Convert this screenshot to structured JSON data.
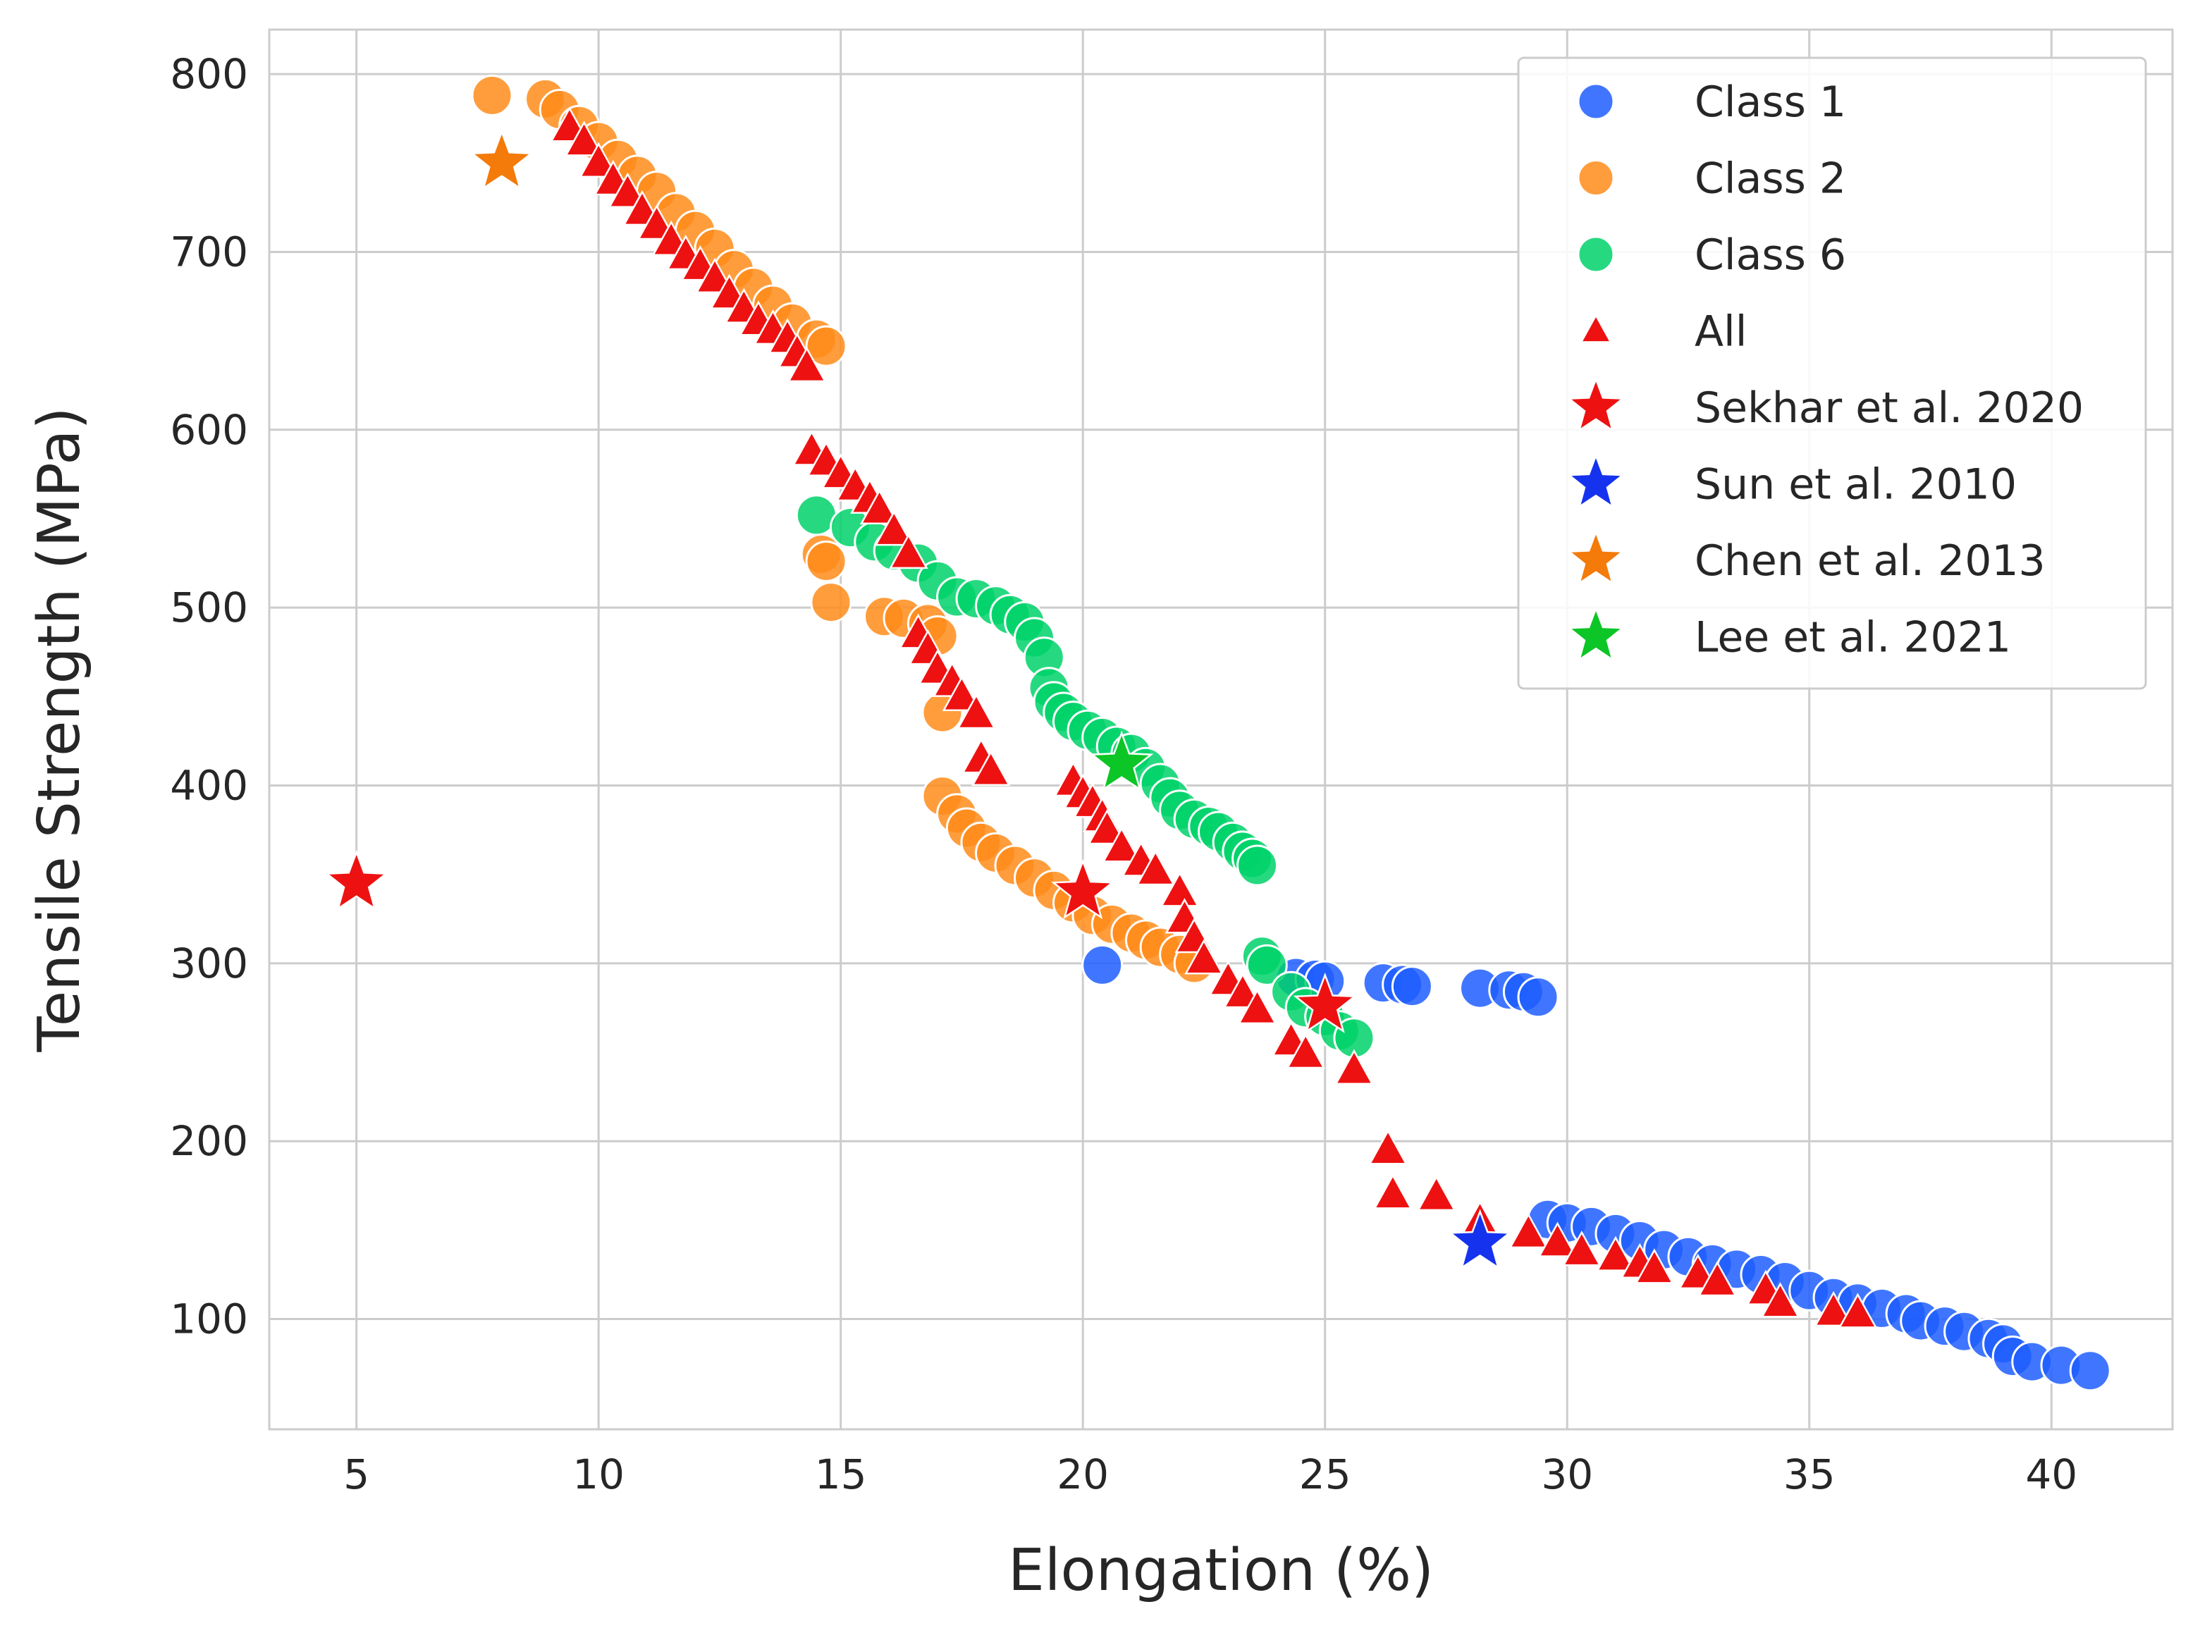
{
  "chart_data": {
    "type": "scatter",
    "title": "",
    "xlabel": "Elongation (%)",
    "ylabel": "Tensile Strength (MPa)",
    "xlim": [
      3.2,
      42.5
    ],
    "ylim": [
      38,
      825
    ],
    "xticks": [
      5,
      10,
      15,
      20,
      25,
      30,
      35,
      40
    ],
    "yticks": [
      100,
      200,
      300,
      400,
      500,
      600,
      700,
      800
    ],
    "grid": true,
    "legend_position": "top-right",
    "series": [
      {
        "name": "Class 1",
        "marker": "circle",
        "color": "#1f5eff",
        "points": [
          [
            20.4,
            299
          ],
          [
            24.4,
            292
          ],
          [
            24.8,
            291
          ],
          [
            25.0,
            290
          ],
          [
            26.2,
            289
          ],
          [
            26.6,
            288
          ],
          [
            26.8,
            287
          ],
          [
            28.2,
            286
          ],
          [
            28.8,
            285
          ],
          [
            29.1,
            284
          ],
          [
            29.4,
            281
          ],
          [
            29.6,
            156
          ],
          [
            30.0,
            154
          ],
          [
            30.5,
            152
          ],
          [
            31.0,
            148
          ],
          [
            31.5,
            144
          ],
          [
            32.0,
            139
          ],
          [
            32.5,
            135
          ],
          [
            33.0,
            131
          ],
          [
            33.5,
            128
          ],
          [
            34.0,
            125
          ],
          [
            34.5,
            121
          ],
          [
            35.0,
            116
          ],
          [
            35.5,
            112
          ],
          [
            36.0,
            109
          ],
          [
            36.5,
            106
          ],
          [
            37.0,
            103
          ],
          [
            37.3,
            99
          ],
          [
            37.8,
            96
          ],
          [
            38.2,
            93
          ],
          [
            38.7,
            89
          ],
          [
            39.0,
            86
          ],
          [
            39.2,
            79
          ],
          [
            39.6,
            76
          ],
          [
            40.2,
            74
          ],
          [
            40.8,
            71
          ]
        ]
      },
      {
        "name": "Class 2",
        "marker": "circle",
        "color": "#ff8c1a",
        "points": [
          [
            7.8,
            788
          ],
          [
            8.9,
            786
          ],
          [
            9.2,
            780
          ],
          [
            9.6,
            771
          ],
          [
            10.0,
            762
          ],
          [
            10.4,
            752
          ],
          [
            10.8,
            743
          ],
          [
            11.2,
            734
          ],
          [
            11.6,
            722
          ],
          [
            12.0,
            712
          ],
          [
            12.4,
            702
          ],
          [
            12.8,
            690
          ],
          [
            13.2,
            680
          ],
          [
            13.6,
            670
          ],
          [
            14.0,
            660
          ],
          [
            14.5,
            651
          ],
          [
            14.7,
            647
          ],
          [
            14.6,
            530
          ],
          [
            14.7,
            526
          ],
          [
            14.8,
            503
          ],
          [
            15.9,
            495
          ],
          [
            16.3,
            494
          ],
          [
            16.8,
            491
          ],
          [
            17.0,
            484
          ],
          [
            17.1,
            441
          ],
          [
            17.1,
            394
          ],
          [
            17.4,
            384
          ],
          [
            17.6,
            376
          ],
          [
            17.9,
            368
          ],
          [
            18.2,
            362
          ],
          [
            18.6,
            355
          ],
          [
            19.0,
            348
          ],
          [
            19.4,
            341
          ],
          [
            19.8,
            334
          ],
          [
            20.2,
            327
          ],
          [
            20.6,
            322
          ],
          [
            21.0,
            317
          ],
          [
            21.3,
            313
          ],
          [
            21.6,
            309
          ],
          [
            22.0,
            305
          ],
          [
            22.3,
            300
          ]
        ]
      },
      {
        "name": "Class 6",
        "marker": "circle",
        "color": "#00d26a",
        "points": [
          [
            14.5,
            552
          ],
          [
            15.2,
            545
          ],
          [
            15.7,
            537
          ],
          [
            16.1,
            532
          ],
          [
            16.6,
            525
          ],
          [
            17.0,
            515
          ],
          [
            17.4,
            506
          ],
          [
            17.8,
            505
          ],
          [
            18.2,
            501
          ],
          [
            18.5,
            496
          ],
          [
            18.8,
            492
          ],
          [
            19.0,
            483
          ],
          [
            19.2,
            472
          ],
          [
            19.3,
            455
          ],
          [
            19.4,
            447
          ],
          [
            19.6,
            441
          ],
          [
            19.8,
            436
          ],
          [
            20.1,
            431
          ],
          [
            20.4,
            427
          ],
          [
            20.7,
            422
          ],
          [
            21.0,
            418
          ],
          [
            21.3,
            410
          ],
          [
            21.6,
            401
          ],
          [
            21.8,
            393
          ],
          [
            22.0,
            386
          ],
          [
            22.3,
            381
          ],
          [
            22.6,
            377
          ],
          [
            22.8,
            374
          ],
          [
            23.1,
            368
          ],
          [
            23.3,
            363
          ],
          [
            23.5,
            359
          ],
          [
            23.6,
            355
          ],
          [
            23.7,
            304
          ],
          [
            23.8,
            299
          ],
          [
            24.3,
            284
          ],
          [
            24.6,
            275
          ],
          [
            25.0,
            270
          ],
          [
            25.3,
            262
          ],
          [
            25.6,
            258
          ]
        ]
      },
      {
        "name": "All",
        "marker": "triangle",
        "color": "#ee1111",
        "points": [
          [
            9.4,
            770
          ],
          [
            9.7,
            762
          ],
          [
            10.0,
            750
          ],
          [
            10.3,
            740
          ],
          [
            10.6,
            733
          ],
          [
            10.9,
            723
          ],
          [
            11.2,
            715
          ],
          [
            11.5,
            706
          ],
          [
            11.8,
            698
          ],
          [
            12.1,
            692
          ],
          [
            12.4,
            685
          ],
          [
            12.7,
            676
          ],
          [
            13.0,
            668
          ],
          [
            13.3,
            661
          ],
          [
            13.6,
            656
          ],
          [
            13.9,
            651
          ],
          [
            14.1,
            643
          ],
          [
            14.3,
            635
          ],
          [
            14.4,
            588
          ],
          [
            14.7,
            582
          ],
          [
            15.0,
            575
          ],
          [
            15.3,
            568
          ],
          [
            15.6,
            561
          ],
          [
            15.8,
            555
          ],
          [
            16.1,
            543
          ],
          [
            16.4,
            530
          ],
          [
            16.6,
            485
          ],
          [
            16.8,
            476
          ],
          [
            17.0,
            465
          ],
          [
            17.3,
            458
          ],
          [
            17.5,
            450
          ],
          [
            17.8,
            440
          ],
          [
            17.9,
            415
          ],
          [
            18.1,
            408
          ],
          [
            19.8,
            402
          ],
          [
            20.0,
            395
          ],
          [
            20.2,
            390
          ],
          [
            20.4,
            382
          ],
          [
            20.5,
            375
          ],
          [
            20.8,
            365
          ],
          [
            21.2,
            357
          ],
          [
            21.5,
            352
          ],
          [
            22.0,
            340
          ],
          [
            22.1,
            325
          ],
          [
            22.3,
            314
          ],
          [
            22.5,
            302
          ],
          [
            23.0,
            290
          ],
          [
            23.3,
            283
          ],
          [
            23.6,
            274
          ],
          [
            24.3,
            256
          ],
          [
            24.6,
            249
          ],
          [
            25.6,
            240
          ],
          [
            26.3,
            195
          ],
          [
            26.4,
            170
          ],
          [
            27.3,
            169
          ],
          [
            28.2,
            155
          ],
          [
            29.2,
            148
          ],
          [
            29.8,
            143
          ],
          [
            30.3,
            138
          ],
          [
            31.0,
            135
          ],
          [
            31.5,
            131
          ],
          [
            31.8,
            128
          ],
          [
            32.7,
            125
          ],
          [
            33.1,
            121
          ],
          [
            34.1,
            116
          ],
          [
            34.4,
            109
          ],
          [
            35.5,
            104
          ],
          [
            36.0,
            103
          ]
        ]
      },
      {
        "name": "Sekhar et al. 2020",
        "marker": "star",
        "color": "#ee1111",
        "points": [
          [
            5.0,
            345
          ],
          [
            20.0,
            340
          ],
          [
            25.0,
            276
          ]
        ]
      },
      {
        "name": "Sun et al. 2010",
        "marker": "star",
        "color": "#1533ee",
        "points": [
          [
            28.2,
            143
          ]
        ]
      },
      {
        "name": "Chen et al. 2013",
        "marker": "star",
        "color": "#f47a0a",
        "points": [
          [
            8.0,
            750
          ]
        ]
      },
      {
        "name": "Lee et al. 2021",
        "marker": "star",
        "color": "#0cc526",
        "points": [
          [
            20.8,
            412
          ]
        ]
      }
    ]
  }
}
